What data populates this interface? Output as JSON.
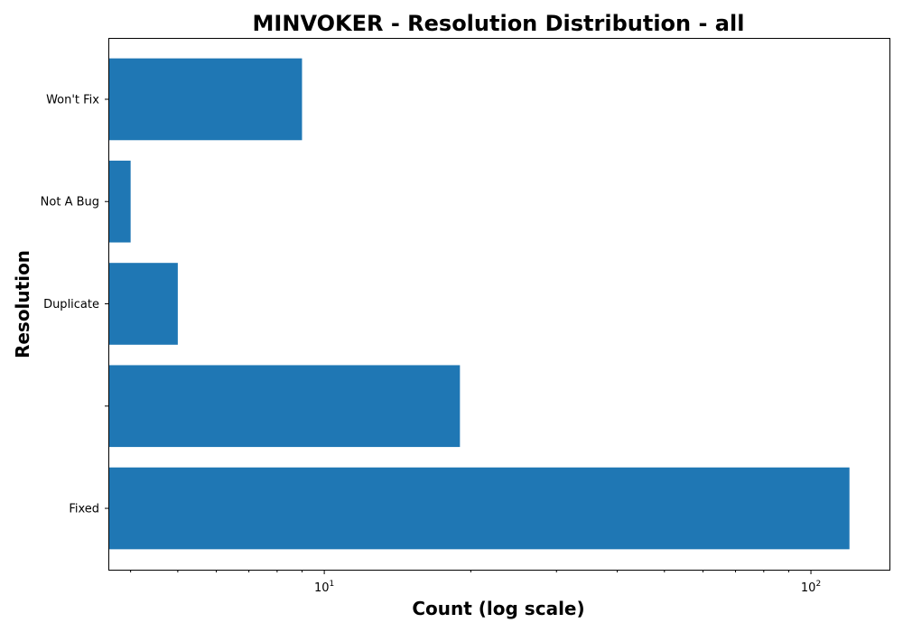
{
  "chart_data": {
    "type": "bar",
    "orientation": "horizontal",
    "title": "MINVOKER - Resolution Distribution - all",
    "xlabel": "Count (log scale)",
    "ylabel": "Resolution",
    "x_scale": "log",
    "xlim": [
      3.6,
      145
    ],
    "categories": [
      "Fixed",
      "",
      "Duplicate",
      "Not A Bug",
      "Won't Fix"
    ],
    "values": [
      120,
      19,
      5,
      4,
      9
    ],
    "x_ticks": [
      {
        "value": 10,
        "base": "10",
        "exponent": "1"
      },
      {
        "value": 100,
        "base": "10",
        "exponent": "2"
      }
    ],
    "grid": false,
    "legend": "none",
    "bar_color": "#1f77b4"
  }
}
